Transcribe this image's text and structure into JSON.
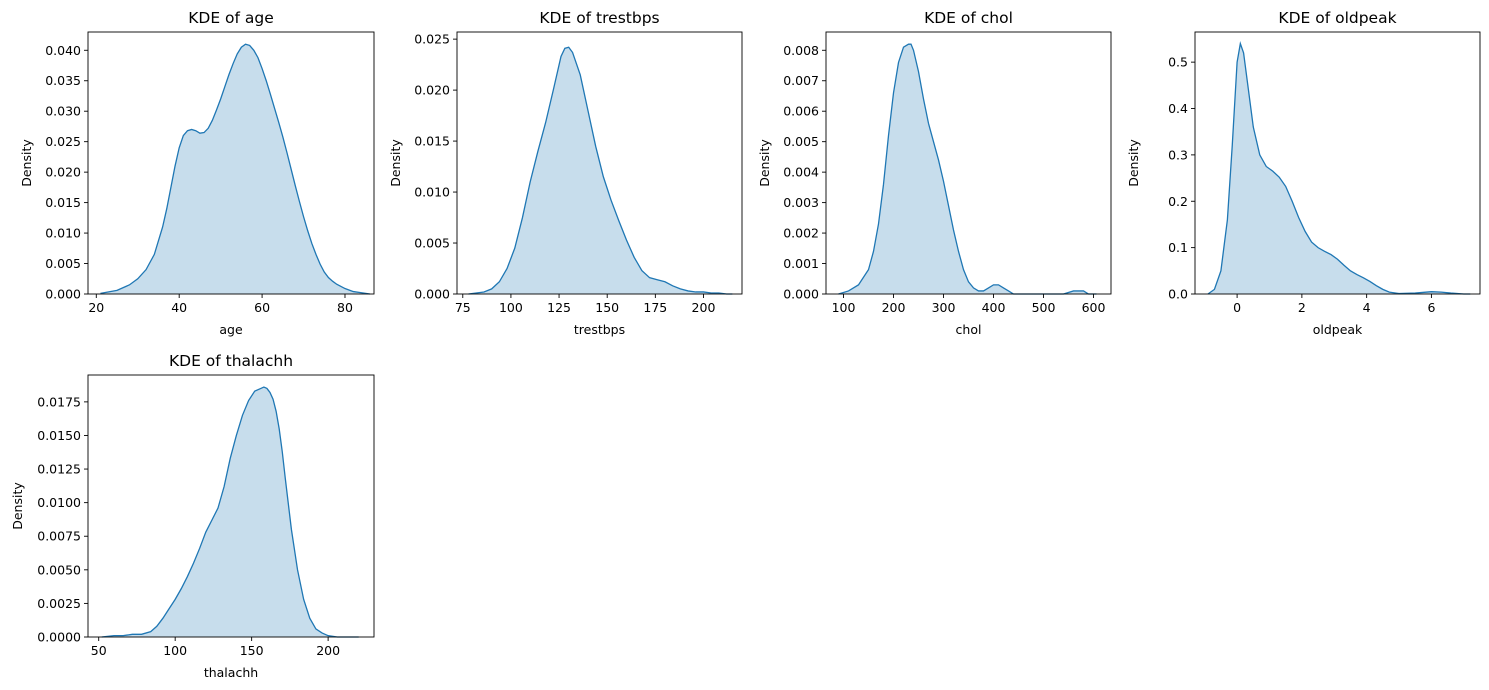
{
  "chart_data": [
    {
      "type": "area",
      "title": "KDE of age",
      "xlabel": "age",
      "ylabel": "Density",
      "xlim": [
        18,
        87
      ],
      "ylim": [
        0,
        0.043
      ],
      "xticks": [
        20,
        40,
        60,
        80
      ],
      "yticks": [
        0.0,
        0.005,
        0.01,
        0.015,
        0.02,
        0.025,
        0.03,
        0.035,
        0.04
      ],
      "ytick_labels": [
        "0.000",
        "0.005",
        "0.010",
        "0.015",
        "0.020",
        "0.025",
        "0.030",
        "0.035",
        "0.040"
      ],
      "color": "#1f77b4",
      "series": [
        {
          "x": [
            21,
            25,
            28,
            30,
            32,
            34,
            36,
            37,
            38,
            39,
            40,
            41,
            42,
            43,
            44,
            45,
            46,
            47,
            48,
            49,
            50,
            51,
            52,
            53,
            54,
            55,
            56,
            57,
            58,
            59,
            60,
            61,
            62,
            63,
            64,
            65,
            66,
            67,
            68,
            69,
            70,
            71,
            72,
            73,
            74,
            75,
            76,
            77,
            78,
            80,
            82,
            84,
            86
          ],
          "y": [
            0.0001,
            0.0006,
            0.0015,
            0.0025,
            0.004,
            0.0065,
            0.011,
            0.014,
            0.0175,
            0.021,
            0.024,
            0.026,
            0.0268,
            0.027,
            0.0268,
            0.0264,
            0.0265,
            0.0272,
            0.0285,
            0.0302,
            0.032,
            0.034,
            0.036,
            0.0378,
            0.0394,
            0.0405,
            0.041,
            0.0408,
            0.04,
            0.0388,
            0.037,
            0.035,
            0.0328,
            0.0305,
            0.0282,
            0.0258,
            0.0232,
            0.0205,
            0.0178,
            0.0152,
            0.0127,
            0.0104,
            0.0083,
            0.0065,
            0.0049,
            0.0036,
            0.0027,
            0.0021,
            0.0016,
            0.0009,
            0.0004,
            0.0002,
            0.0
          ]
        }
      ]
    },
    {
      "type": "area",
      "title": "KDE of trestbps",
      "xlabel": "trestbps",
      "ylabel": "Density",
      "xlim": [
        72,
        220
      ],
      "ylim": [
        0,
        0.0257
      ],
      "xticks": [
        75,
        100,
        125,
        150,
        175,
        200
      ],
      "yticks": [
        0.0,
        0.005,
        0.01,
        0.015,
        0.02,
        0.025
      ],
      "ytick_labels": [
        "0.000",
        "0.005",
        "0.010",
        "0.015",
        "0.020",
        "0.025"
      ],
      "color": "#1f77b4",
      "series": [
        {
          "x": [
            78,
            82,
            86,
            90,
            94,
            98,
            102,
            106,
            110,
            114,
            118,
            122,
            126,
            128,
            130,
            132,
            136,
            140,
            144,
            148,
            152,
            156,
            160,
            164,
            168,
            172,
            176,
            180,
            184,
            188,
            192,
            196,
            200,
            204,
            208,
            212,
            215
          ],
          "y": [
            0.0,
            0.0001,
            0.0002,
            0.0005,
            0.0012,
            0.0025,
            0.0045,
            0.0075,
            0.011,
            0.014,
            0.0168,
            0.02,
            0.0233,
            0.0241,
            0.0242,
            0.0237,
            0.0215,
            0.018,
            0.0145,
            0.0115,
            0.0092,
            0.0072,
            0.0053,
            0.0036,
            0.0023,
            0.0016,
            0.0014,
            0.0012,
            0.0008,
            0.0005,
            0.0003,
            0.0002,
            0.0002,
            0.0001,
            0.0001,
            0.0,
            0.0
          ]
        }
      ]
    },
    {
      "type": "area",
      "title": "KDE of chol",
      "xlabel": "chol",
      "ylabel": "Density",
      "xlim": [
        65,
        635
      ],
      "ylim": [
        0,
        0.0086
      ],
      "xticks": [
        100,
        200,
        300,
        400,
        500,
        600
      ],
      "yticks": [
        0.0,
        0.001,
        0.002,
        0.003,
        0.004,
        0.005,
        0.006,
        0.007,
        0.008
      ],
      "ytick_labels": [
        "0.000",
        "0.001",
        "0.002",
        "0.003",
        "0.004",
        "0.005",
        "0.006",
        "0.007",
        "0.008"
      ],
      "color": "#1f77b4",
      "series": [
        {
          "x": [
            90,
            110,
            130,
            150,
            160,
            170,
            180,
            190,
            200,
            210,
            220,
            230,
            235,
            240,
            250,
            260,
            270,
            280,
            290,
            300,
            310,
            320,
            330,
            340,
            350,
            360,
            370,
            380,
            390,
            400,
            410,
            420,
            430,
            440,
            460,
            480,
            500,
            520,
            540,
            560,
            570,
            580,
            590,
            600,
            606
          ],
          "y": [
            0.0,
            0.0001,
            0.0003,
            0.0008,
            0.0014,
            0.0023,
            0.0036,
            0.0052,
            0.0066,
            0.0076,
            0.0081,
            0.0082,
            0.0082,
            0.008,
            0.0073,
            0.0064,
            0.0056,
            0.005,
            0.0044,
            0.0037,
            0.0029,
            0.0021,
            0.0014,
            0.0008,
            0.0004,
            0.0002,
            0.0001,
            0.0001,
            0.0002,
            0.0003,
            0.0003,
            0.0002,
            0.0001,
            0.0,
            0.0,
            0.0,
            0.0,
            0.0,
            0.0,
            0.0001,
            0.0001,
            0.0001,
            0.0,
            0.0,
            0.0
          ]
        }
      ]
    },
    {
      "type": "area",
      "title": "KDE of oldpeak",
      "xlabel": "oldpeak",
      "ylabel": "Density",
      "xlim": [
        -1.3,
        7.5
      ],
      "ylim": [
        0,
        0.565
      ],
      "xticks": [
        0,
        2,
        4,
        6
      ],
      "yticks": [
        0.0,
        0.1,
        0.2,
        0.3,
        0.4,
        0.5
      ],
      "ytick_labels": [
        "0.0",
        "0.1",
        "0.2",
        "0.3",
        "0.4",
        "0.5"
      ],
      "color": "#1f77b4",
      "series": [
        {
          "x": [
            -0.9,
            -0.7,
            -0.5,
            -0.3,
            -0.15,
            0,
            0.1,
            0.2,
            0.35,
            0.5,
            0.7,
            0.9,
            1.1,
            1.3,
            1.5,
            1.7,
            1.9,
            2.1,
            2.3,
            2.5,
            2.7,
            2.9,
            3.1,
            3.3,
            3.5,
            3.7,
            3.9,
            4.1,
            4.3,
            4.5,
            4.7,
            5.0,
            5.5,
            6.0,
            6.3,
            6.6,
            7.0,
            7.2
          ],
          "y": [
            0.0,
            0.01,
            0.05,
            0.16,
            0.32,
            0.5,
            0.54,
            0.52,
            0.44,
            0.36,
            0.3,
            0.275,
            0.265,
            0.252,
            0.232,
            0.2,
            0.165,
            0.135,
            0.112,
            0.1,
            0.092,
            0.085,
            0.075,
            0.062,
            0.05,
            0.042,
            0.035,
            0.027,
            0.018,
            0.01,
            0.004,
            0.001,
            0.002,
            0.005,
            0.004,
            0.002,
            0.0,
            0.0
          ]
        }
      ]
    },
    {
      "type": "area",
      "title": "KDE of thalachh",
      "xlabel": "thalachh",
      "ylabel": "Density",
      "xlim": [
        43,
        230
      ],
      "ylim": [
        0,
        0.0195
      ],
      "xticks": [
        50,
        100,
        150,
        200
      ],
      "yticks": [
        0.0,
        0.0025,
        0.005,
        0.0075,
        0.01,
        0.0125,
        0.015,
        0.0175
      ],
      "ytick_labels": [
        "0.0000",
        "0.0025",
        "0.0050",
        "0.0075",
        "0.0100",
        "0.0125",
        "0.0150",
        "0.0175"
      ],
      "color": "#1f77b4",
      "series": [
        {
          "x": [
            52,
            60,
            66,
            72,
            78,
            84,
            88,
            92,
            96,
            100,
            104,
            108,
            112,
            116,
            120,
            124,
            128,
            132,
            136,
            140,
            144,
            148,
            152,
            156,
            158,
            160,
            162,
            164,
            166,
            168,
            170,
            172,
            176,
            180,
            184,
            188,
            192,
            196,
            200,
            206,
            212,
            220
          ],
          "y": [
            0.0,
            0.0001,
            0.0001,
            0.0002,
            0.0002,
            0.0004,
            0.0008,
            0.0014,
            0.0021,
            0.0028,
            0.0036,
            0.0045,
            0.0055,
            0.0066,
            0.0078,
            0.0087,
            0.0096,
            0.0112,
            0.0133,
            0.015,
            0.0165,
            0.0176,
            0.0183,
            0.0185,
            0.0186,
            0.0185,
            0.0182,
            0.0177,
            0.0168,
            0.0155,
            0.0138,
            0.0118,
            0.008,
            0.005,
            0.0028,
            0.0014,
            0.0006,
            0.0003,
            0.0001,
            0.0,
            0.0,
            0.0
          ]
        }
      ]
    }
  ]
}
